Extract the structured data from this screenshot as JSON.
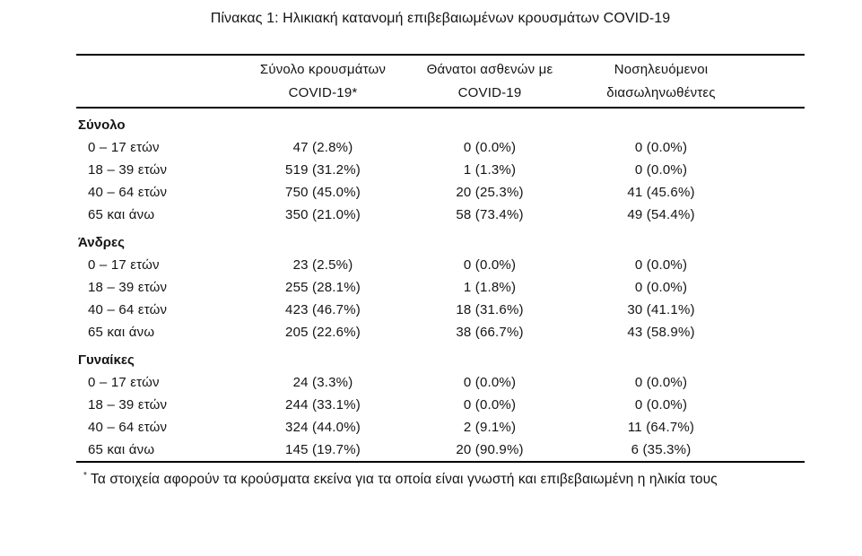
{
  "title": "Πίνακας 1: Ηλικιακή κατανομή επιβεβαιωμένων κρουσμάτων COVID-19",
  "table": {
    "columns": [
      {
        "line1": "Σύνολο κρουσμάτων",
        "line2": "COVID-19*"
      },
      {
        "line1": "Θάνατοι ασθενών με",
        "line2": "COVID-19"
      },
      {
        "line1": "Νοσηλευόμενοι",
        "line2": "διασωληνωθέντες"
      }
    ],
    "sections": [
      {
        "name": "Σύνολο",
        "rows": [
          {
            "label": "0 – 17 ετών",
            "cases": "47 (2.8%)",
            "deaths": "0 (0.0%)",
            "intubated": "0 (0.0%)"
          },
          {
            "label": "18 – 39 ετών",
            "cases": "519 (31.2%)",
            "deaths": "1 (1.3%)",
            "intubated": "0 (0.0%)"
          },
          {
            "label": "40 – 64 ετών",
            "cases": "750 (45.0%)",
            "deaths": "20 (25.3%)",
            "intubated": "41 (45.6%)"
          },
          {
            "label": "65 και άνω",
            "cases": "350 (21.0%)",
            "deaths": "58 (73.4%)",
            "intubated": "49 (54.4%)"
          }
        ]
      },
      {
        "name": "Άνδρες",
        "rows": [
          {
            "label": "0 – 17 ετών",
            "cases": "23 (2.5%)",
            "deaths": "0 (0.0%)",
            "intubated": "0 (0.0%)"
          },
          {
            "label": "18 – 39 ετών",
            "cases": "255 (28.1%)",
            "deaths": "1 (1.8%)",
            "intubated": "0 (0.0%)"
          },
          {
            "label": "40 – 64 ετών",
            "cases": "423 (46.7%)",
            "deaths": "18 (31.6%)",
            "intubated": "30 (41.1%)"
          },
          {
            "label": "65 και άνω",
            "cases": "205 (22.6%)",
            "deaths": "38 (66.7%)",
            "intubated": "43 (58.9%)"
          }
        ]
      },
      {
        "name": "Γυναίκες",
        "rows": [
          {
            "label": "0 – 17 ετών",
            "cases": "24 (3.3%)",
            "deaths": "0 (0.0%)",
            "intubated": "0 (0.0%)"
          },
          {
            "label": "18 – 39 ετών",
            "cases": "244 (33.1%)",
            "deaths": "0 (0.0%)",
            "intubated": "0 (0.0%)"
          },
          {
            "label": "40 – 64 ετών",
            "cases": "324 (44.0%)",
            "deaths": "2 (9.1%)",
            "intubated": "11 (64.7%)"
          },
          {
            "label": "65 και άνω",
            "cases": "145 (19.7%)",
            "deaths": "20 (90.9%)",
            "intubated": "6 (35.3%)"
          }
        ]
      }
    ]
  },
  "footnote": {
    "marker": "*",
    "text": "Τα στοιχεία αφορούν τα κρούσματα εκείνα για τα οποία είναι γνωστή και επιβεβαιωμένη η ηλικία τους"
  }
}
